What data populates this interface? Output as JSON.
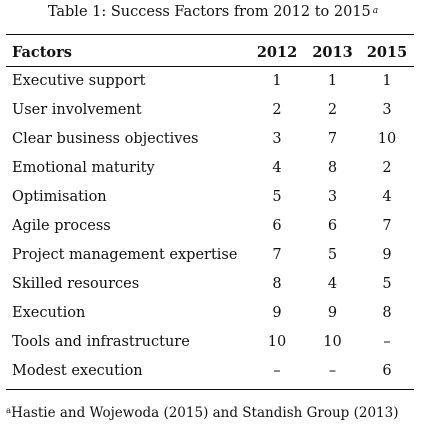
{
  "table": {
    "caption": "Table 1: Success Factors from 2012 to 2015",
    "caption_marker": "a",
    "headers": [
      "Factors",
      "2012",
      "2013",
      "2015"
    ],
    "rows": [
      {
        "factor": "Executive support",
        "y2012": "1",
        "y2013": "1",
        "y2015": "1"
      },
      {
        "factor": "User involvement",
        "y2012": "2",
        "y2013": "2",
        "y2015": "3"
      },
      {
        "factor": "Clear business objectives",
        "y2012": "3",
        "y2013": "7",
        "y2015": "10"
      },
      {
        "factor": "Emotional maturity",
        "y2012": "4",
        "y2013": "8",
        "y2015": "2"
      },
      {
        "factor": "Optimisation",
        "y2012": "5",
        "y2013": "3",
        "y2015": "4"
      },
      {
        "factor": "Agile process",
        "y2012": "6",
        "y2013": "6",
        "y2015": "7"
      },
      {
        "factor": "Project management expertise",
        "y2012": "7",
        "y2013": "5",
        "y2015": "9"
      },
      {
        "factor": "Skilled resources",
        "y2012": "8",
        "y2013": "4",
        "y2015": "5"
      },
      {
        "factor": "Execution",
        "y2012": "9",
        "y2013": "9",
        "y2015": "8"
      },
      {
        "factor": "Tools and infrastructure",
        "y2012": "10",
        "y2013": "10",
        "y2015": "–"
      },
      {
        "factor": "Modest execution",
        "y2012": "–",
        "y2013": "–",
        "y2015": "6"
      }
    ],
    "footnote_marker": "a",
    "footnote": "Hastie and Wojewoda (2015) and Standish Group (2013)"
  }
}
